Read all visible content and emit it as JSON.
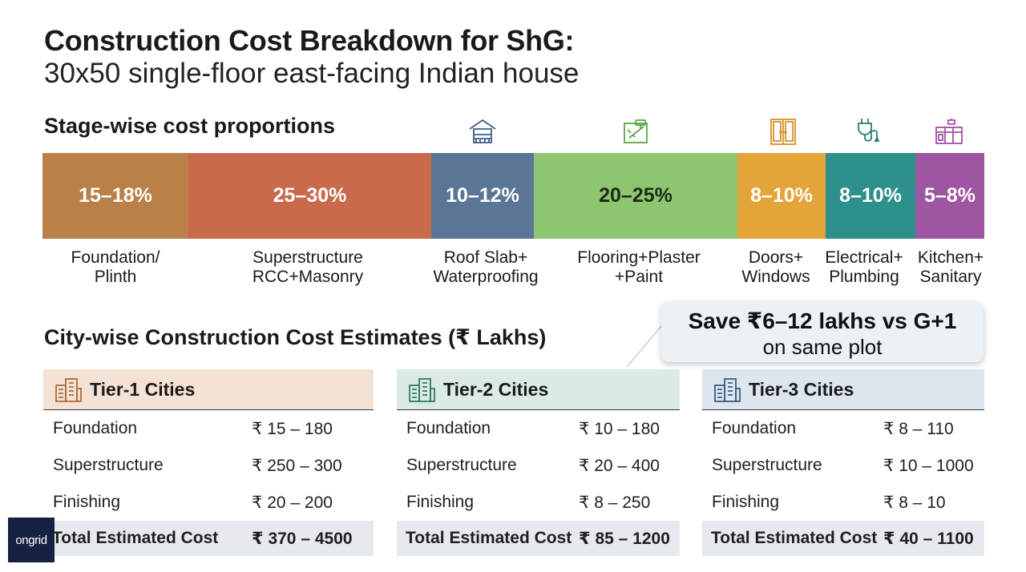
{
  "header": {
    "title": "Construction Cost Breakdown for ShG:",
    "subtitle": "30x50 single-floor east-facing Indian house"
  },
  "stages": {
    "heading": "Stage-wise cost proportions",
    "segments": [
      {
        "pct": "15–18%",
        "label_1": "Foundation/",
        "label_2": "Plinth",
        "color": "#b98047",
        "icon": ""
      },
      {
        "pct": "25–30%",
        "label_1": "Superstructure",
        "label_2": "RCC+Masonry",
        "color": "#c86a4b",
        "icon": ""
      },
      {
        "pct": "10–12%",
        "label_1": "Roof Slab+",
        "label_2": "Waterproofing",
        "color": "#5a7596",
        "icon": "house-roof-icon"
      },
      {
        "pct": "20–25%",
        "label_1": "Flooring+Plaster",
        "label_2": "+Paint",
        "color": "#8dc571",
        "icon": "paint-roller-icon"
      },
      {
        "pct": "8–10%",
        "label_1": "Doors+",
        "label_2": "Windows",
        "color": "#e3a53a",
        "icon": "door-icon"
      },
      {
        "pct": "8–10%",
        "label_1": "Electrical+",
        "label_2": "Plumbing",
        "color": "#2d908c",
        "icon": "plug-icon"
      },
      {
        "pct": "5–8%",
        "label_1": "Kitchen+",
        "label_2": "Sanitary",
        "color": "#9e55a2",
        "icon": "kitchen-icon"
      }
    ]
  },
  "callout": {
    "line1": "Save ₹6–12 lakhs vs G+1",
    "line2": "on same plot"
  },
  "cities": {
    "heading": "City-wise Construction Cost Estimates (₹ Lakhs)",
    "tiers": [
      {
        "name": "Tier-1 Cities",
        "color": "#f4e2d4",
        "icon": "building-icon",
        "rows": [
          {
            "label": "Foundation",
            "value": "₹ 15 – 180"
          },
          {
            "label": "Superstructure",
            "value": "₹ 250 – 300"
          },
          {
            "label": "Finishing",
            "value": "₹ 20 – 200"
          }
        ],
        "total_label": "Total Estimated Cost",
        "total_value": "₹ 370 – 4500"
      },
      {
        "name": "Tier-2 Cities",
        "color": "#dcebe2",
        "icon": "building-icon",
        "rows": [
          {
            "label": "Foundation",
            "value": "₹ 10 – 180"
          },
          {
            "label": "Superstructure",
            "value": "₹ 20 – 400"
          },
          {
            "label": "Finishing",
            "value": "₹ 8 – 250"
          }
        ],
        "total_label": "Total Estimated Cost",
        "total_value": "₹ 85 – 1200"
      },
      {
        "name": "Tier-3 Cities",
        "color": "#dde6ee",
        "icon": "building-icon",
        "rows": [
          {
            "label": "Foundation",
            "value": "₹ 8 – 110"
          },
          {
            "label": "Superstructure",
            "value": "₹ 10 – 1000"
          },
          {
            "label": "Finishing",
            "value": "₹ 8 – 10"
          }
        ],
        "total_label": "Total Estimated Cost",
        "total_value": "₹ 40 – 1100"
      }
    ]
  },
  "logo": {
    "text": "ongrid"
  }
}
